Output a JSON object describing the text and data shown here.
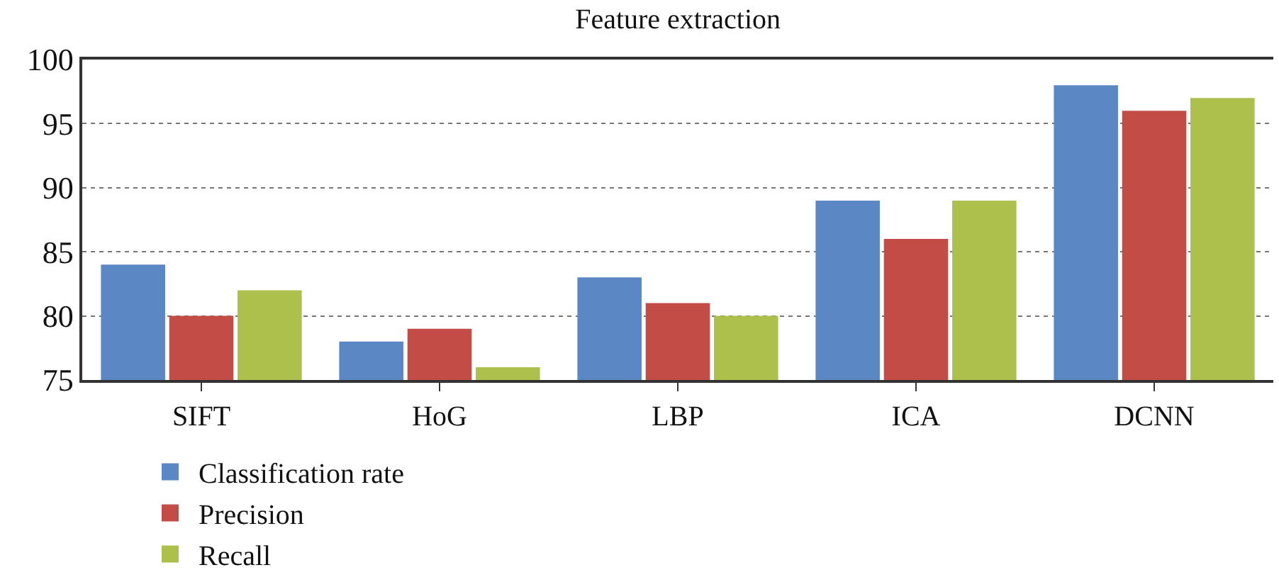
{
  "chart_data": {
    "type": "bar",
    "title": "Feature extraction",
    "categories": [
      "SIFT",
      "HoG",
      "LBP",
      "ICA",
      "DCNN"
    ],
    "series": [
      {
        "name": "Classification rate",
        "color": "#5b87c5",
        "values": [
          84,
          78,
          83,
          89,
          98
        ]
      },
      {
        "name": "Precision",
        "color": "#c44c47",
        "values": [
          80,
          79,
          81,
          86,
          96
        ]
      },
      {
        "name": "Recall",
        "color": "#adc04b",
        "values": [
          82,
          76,
          80,
          89,
          97
        ]
      }
    ],
    "ylim": [
      75,
      100
    ],
    "yticks": [
      75,
      80,
      85,
      90,
      95,
      100
    ],
    "grid": "y",
    "legend": "bottom left"
  }
}
